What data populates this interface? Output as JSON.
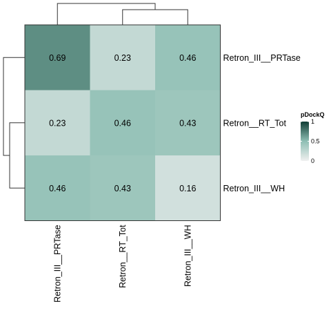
{
  "chart_data": {
    "type": "heatmap",
    "rows": [
      "Retron_III__PRTase",
      "Retron__RT_Tot",
      "Retron_III__WH"
    ],
    "columns": [
      "Retron_III__PRTase",
      "Retron__RT_Tot",
      "Retron_III__WH"
    ],
    "values": [
      [
        0.69,
        0.23,
        0.46
      ],
      [
        0.23,
        0.46,
        0.43
      ],
      [
        0.46,
        0.43,
        0.16
      ]
    ],
    "legend": {
      "title": "pDockQ",
      "ticks": [
        "1",
        "0.5",
        "0"
      ],
      "range": [
        0,
        1
      ],
      "colors": [
        "#f0f0f0",
        "#8fbfb4",
        "#0f3d34"
      ]
    },
    "dendrograms": {
      "rows": true,
      "columns": true
    }
  }
}
